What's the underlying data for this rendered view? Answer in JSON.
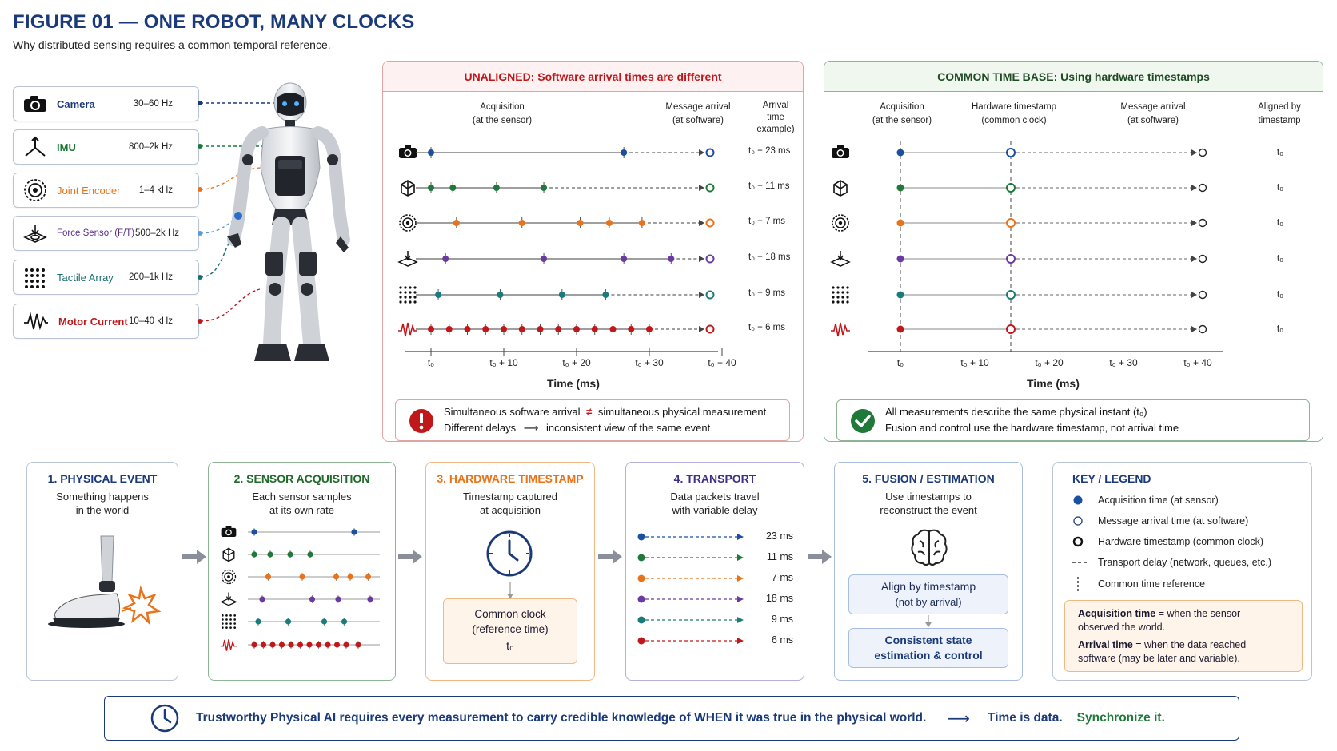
{
  "figure": {
    "title": "FIGURE 01 — ONE ROBOT, MANY CLOCKS",
    "subtitle": "Why distributed sensing requires a common temporal reference."
  },
  "sensors": [
    {
      "name": "Camera",
      "rate": "30–60 Hz",
      "color": "#1b3a7a",
      "icon": "camera-icon"
    },
    {
      "name": "IMU",
      "rate": "800–2k Hz",
      "color": "#1f7a3a",
      "icon": "imu-axes-icon"
    },
    {
      "name": "Joint Encoder",
      "rate": "1–4 kHz",
      "color": "#e8731a",
      "icon": "encoder-icon"
    },
    {
      "name": "Force Sensor (F/T)",
      "rate": "500–2k Hz",
      "color": "#5b2d8a",
      "icon": "force-sensor-icon"
    },
    {
      "name": "Tactile Array",
      "rate": "200–1k Hz",
      "color": "#1b6f6f",
      "icon": "tactile-grid-icon"
    },
    {
      "name": "Motor Current",
      "rate": "10–40 kHz",
      "color": "#c0171b",
      "icon": "waveform-icon"
    }
  ],
  "unaligned": {
    "title": "UNALIGNED: Software arrival times are different",
    "col_acq": [
      "Acquisition",
      "(at the sensor)"
    ],
    "col_msg": [
      "Message arrival",
      "(at software)"
    ],
    "col_arr": [
      "Arrival",
      "time",
      "example)"
    ],
    "arrivals": [
      "t₀ + 23 ms",
      "t₀ + 11 ms",
      "t₀ + 7 ms",
      "t₀ + 18 ms",
      "t₀ + 9 ms",
      "t₀ + 6 ms"
    ],
    "ticks": [
      "t₀",
      "t₀ + 10",
      "t₀ + 20",
      "t₀ + 30",
      "t₀ + 40"
    ],
    "axis_title": "Time (ms)",
    "note_line1_a": "Simultaneous software arrival",
    "note_neq": "≠",
    "note_line1_b": "simultaneous physical measurement",
    "note_line2_a": "Different delays",
    "note_line2_b": "inconsistent view of the same event"
  },
  "common": {
    "title": "COMMON TIME BASE: Using hardware timestamps",
    "col_acq": [
      "Acquisition",
      "(at the sensor)"
    ],
    "col_hw": [
      "Hardware timestamp",
      "(common clock)"
    ],
    "col_msg": [
      "Message arrival",
      "(at software)"
    ],
    "col_aligned": [
      "Aligned by",
      "timestamp"
    ],
    "aligned": [
      "t₀",
      "t₀",
      "t₀",
      "t₀",
      "t₀",
      "t₀"
    ],
    "ticks": [
      "t₀",
      "t₀ + 10",
      "t₀ + 20",
      "t₀ + 30",
      "t₀ + 40"
    ],
    "axis_title": "Time (ms)",
    "note_line1": "All measurements describe the same physical instant (t₀)",
    "note_line2": "Fusion and control use the hardware timestamp, not arrival time"
  },
  "steps": {
    "s1": {
      "title": "1. PHYSICAL EVENT",
      "desc": [
        "Something happens",
        "in the world"
      ]
    },
    "s2": {
      "title": "2. SENSOR ACQUISITION",
      "desc": [
        "Each sensor samples",
        "at its own rate"
      ]
    },
    "s3": {
      "title": "3. HARDWARE TIMESTAMP",
      "desc": [
        "Timestamp captured",
        "at acquisition"
      ],
      "box": [
        "Common clock",
        "(reference time)",
        "t₀"
      ]
    },
    "s4": {
      "title": "4. TRANSPORT",
      "desc": [
        "Data packets travel",
        "with variable delay"
      ],
      "delays": [
        "23 ms",
        "11 ms",
        "7 ms",
        "18 ms",
        "9 ms",
        "6 ms"
      ]
    },
    "s5": {
      "title": "5. FUSION / ESTIMATION",
      "desc": [
        "Use timestamps to",
        "reconstruct the event"
      ],
      "box1": [
        "Align by timestamp",
        "(not by arrival)"
      ],
      "box2": [
        "Consistent state",
        "estimation & control"
      ]
    }
  },
  "legend": {
    "title": "KEY / LEGEND",
    "items": [
      "Acquisition time (at sensor)",
      "Message arrival time (at software)",
      "Hardware timestamp (common clock)",
      "Transport delay (network, queues, etc.)",
      "Common time reference"
    ],
    "acq_term": "Acquisition time",
    "acq_def_a": " = when the sensor",
    "acq_def_b": "observed the world.",
    "arr_term": "Arrival time",
    "arr_def_a": " = when the data reached",
    "arr_def_b": "software (may be later and variable)."
  },
  "banner": {
    "text": "Trustworthy Physical AI requires every measurement to carry credible knowledge of WHEN it was true in the physical world.",
    "arrow": "⟶",
    "tag1": "Time is data.",
    "tag2": "Synchronize it."
  },
  "colors": {
    "navy": "#1b3a7a",
    "unaligned_red": "#c0171b",
    "common_green": "#1f6a2a",
    "hw_orange": "#e8731a",
    "step_purple": "#5b4aa0"
  }
}
